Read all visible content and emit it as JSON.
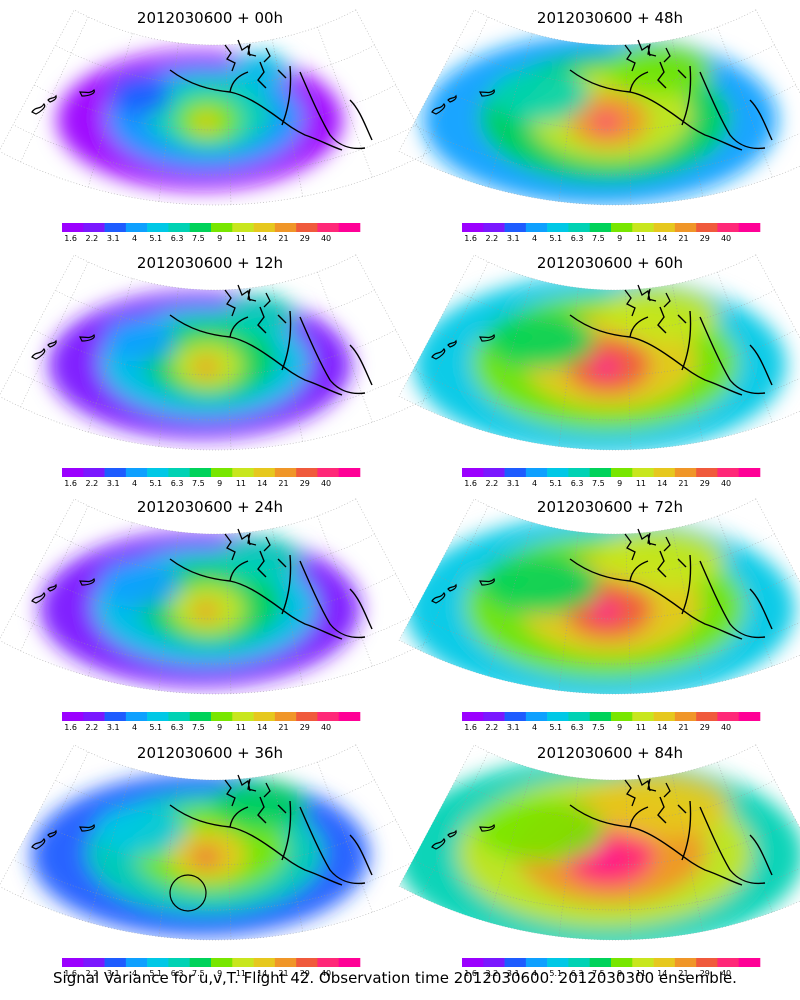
{
  "panels": [
    {
      "title": "2012030600 + 00h",
      "lead": 0
    },
    {
      "title": "2012030600 + 48h",
      "lead": 48
    },
    {
      "title": "2012030600 + 12h",
      "lead": 12
    },
    {
      "title": "2012030600 + 60h",
      "lead": 60
    },
    {
      "title": "2012030600 + 24h",
      "lead": 24
    },
    {
      "title": "2012030600 + 72h",
      "lead": 72
    },
    {
      "title": "2012030600 + 36h",
      "lead": 36
    },
    {
      "title": "2012030600 + 84h",
      "lead": 84
    }
  ],
  "colorbar": {
    "labels": [
      "1.6",
      "2.2",
      "3.1",
      "4",
      "5.1",
      "6.3",
      "7.5",
      "9",
      "11",
      "14",
      "21",
      "29",
      "40"
    ],
    "colors": [
      "#9b00ff",
      "#7a18ff",
      "#1e5cff",
      "#0ea0ff",
      "#00c8e6",
      "#00d2b4",
      "#00d25a",
      "#78e600",
      "#c8e61e",
      "#e6c81e",
      "#f09628",
      "#f05a3c",
      "#ff2878",
      "#ff0096"
    ]
  },
  "caption": "Signal Variance for u,v,T. Flight 42. Observation time 2012030600. 2012030300 ensemble."
}
